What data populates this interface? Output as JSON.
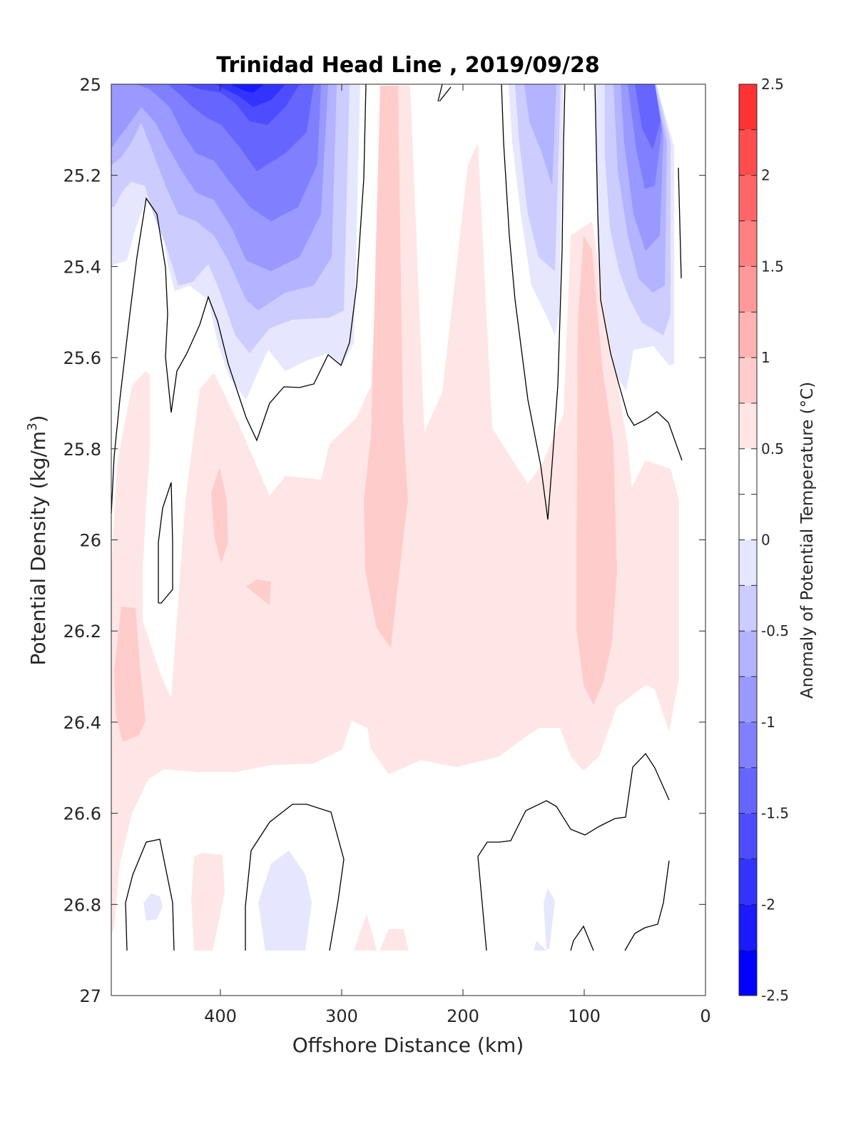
{
  "chart_data": {
    "type": "heatmap",
    "subtype": "filled-contour",
    "title": "Trinidad Head Line , 2019/09/28",
    "xlabel": "Offshore Distance (km)",
    "ylabel_main": "Potential Density (kg/m",
    "ylabel_sup": "3",
    "ylabel_close": ")",
    "xlim": [
      490,
      0
    ],
    "x_reversed": true,
    "ylim": [
      25,
      27
    ],
    "y_reversed": true,
    "x_ticks": [
      400,
      300,
      200,
      100,
      0
    ],
    "x_tick_labels": [
      "400",
      "300",
      "200",
      "100",
      "0"
    ],
    "y_ticks": [
      25,
      25.2,
      25.4,
      25.6,
      25.8,
      26,
      26.2,
      26.4,
      26.6,
      26.8,
      27
    ],
    "y_tick_labels": [
      "25",
      "25.2",
      "25.4",
      "25.6",
      "25.8",
      "26",
      "26.2",
      "26.4",
      "26.6",
      "26.8",
      "27"
    ],
    "grid": false,
    "colorbar": {
      "label": "Anomaly of Potential Temperature (°C)",
      "range": [
        -2.5,
        2.5
      ],
      "levels": [
        -2.5,
        -2.25,
        -2,
        -1.75,
        -1.5,
        -1.25,
        -1,
        -0.75,
        -0.5,
        -0.25,
        0,
        0.25,
        0.5,
        0.75,
        1,
        1.25,
        1.5,
        1.75,
        2,
        2.25,
        2.5
      ],
      "tick_values": [
        2.5,
        2,
        1.5,
        1,
        0.5,
        0,
        -0.5,
        -1,
        -1.5,
        -2,
        -2.5
      ],
      "tick_labels": [
        "2.5",
        "2",
        "1.5",
        "1",
        "0.5",
        "0",
        "-0.5",
        "-1",
        "-1.5",
        "-2",
        "-2.5"
      ],
      "colors": [
        "#0000ff",
        "#1a1aff",
        "#3333ff",
        "#4d4dff",
        "#6666ff",
        "#8080ff",
        "#9999ff",
        "#b3b3ff",
        "#ccccff",
        "#e6e6ff",
        "#ffffff",
        "#ffffff",
        "#ffe6e6",
        "#ffcccc",
        "#ffb3b3",
        "#ff9999",
        "#ff8080",
        "#ff6666",
        "#ff4d4d",
        "#ff3333",
        "#ff1a1a",
        "#ff0000"
      ],
      "location": "right"
    },
    "anomaly_regions": [
      {
        "name": "upper-left cold anomaly",
        "min_value": -2.25,
        "x_range": [
          490,
          290
        ],
        "y_range": [
          25,
          25.65
        ]
      },
      {
        "name": "cold anomaly near 130 km",
        "min_value": -1.0,
        "x_range": [
          165,
          125
        ],
        "y_range": [
          25,
          25.55
        ]
      },
      {
        "name": "nearshore cold anomaly",
        "min_value": -1.75,
        "x_range": [
          90,
          25
        ],
        "y_range": [
          25,
          25.6
        ]
      },
      {
        "name": "warm band near 260 km",
        "max_value": 0.75,
        "x_range": [
          280,
          235
        ],
        "y_range": [
          25,
          26.5
        ]
      },
      {
        "name": "warm band near 100 km",
        "max_value": 0.75,
        "x_range": [
          115,
          60
        ],
        "y_range": [
          25.3,
          26.5
        ]
      },
      {
        "name": "broad warm layer",
        "max_value": 0.5,
        "x_range": [
          490,
          20
        ],
        "y_range": [
          25.6,
          26.5
        ]
      },
      {
        "name": "deep weak cold patch",
        "min_value": -0.25,
        "x_range": [
          370,
          320
        ],
        "y_range": [
          26.7,
          26.9
        ]
      }
    ]
  }
}
